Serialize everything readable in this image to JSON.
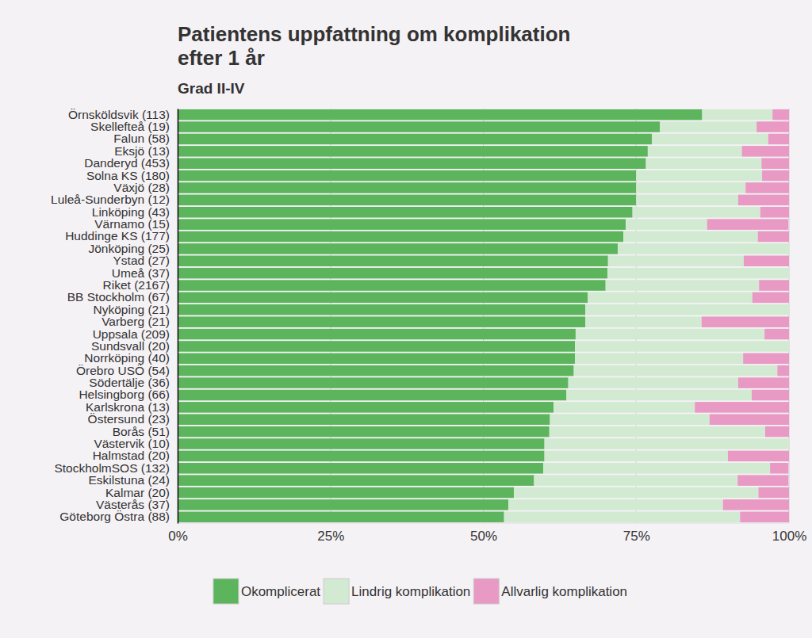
{
  "chart_data": {
    "type": "bar",
    "orientation": "horizontal",
    "stacked": true,
    "grid": true,
    "legend": "bottom",
    "title": "Patientens uppfattning om komplikation\nefter 1 år",
    "subtitle": "Grad II-IV",
    "categories": [
      "Örnsköldsvik (113)",
      "Skellefteå (19)",
      "Falun (58)",
      "Eksjö (13)",
      "Danderyd (453)",
      "Solna KS (180)",
      "Växjö (28)",
      "Luleå-Sunderbyn (12)",
      "Linköping (43)",
      "Värnamo (15)",
      "Huddinge KS (177)",
      "Jönköping (25)",
      "Ystad (27)",
      "Umeå (37)",
      "Riket (2167)",
      "BB Stockholm (67)",
      "Nyköping (21)",
      "Varberg (21)",
      "Uppsala (209)",
      "Sundsvall (20)",
      "Norrköping (40)",
      "Örebro USÖ (54)",
      "Södertälje (36)",
      "Helsingborg (66)",
      "Karlskrona (13)",
      "Östersund (23)",
      "Borås (51)",
      "Västervik (10)",
      "Halmstad (20)",
      "StockholmSOS (132)",
      "Eskilstuna (24)",
      "Kalmar (20)",
      "Västerås (37)",
      "Göteborg Östra (88)"
    ],
    "series": [
      {
        "name": "Okomplicerat",
        "color": "#5cb55c",
        "values": [
          85.8,
          78.9,
          77.6,
          76.9,
          76.6,
          75.0,
          75.0,
          75.0,
          74.4,
          73.3,
          72.9,
          72.0,
          70.4,
          70.3,
          70.0,
          67.1,
          66.7,
          66.7,
          65.1,
          65.0,
          65.0,
          64.8,
          63.9,
          63.6,
          61.5,
          60.9,
          60.8,
          60.0,
          60.0,
          59.8,
          58.3,
          55.0,
          54.1,
          53.4
        ]
      },
      {
        "name": "Lindrig komplikation",
        "color": "#d2ead2",
        "values": [
          11.5,
          15.8,
          19.0,
          15.4,
          18.9,
          20.6,
          17.9,
          16.7,
          20.9,
          13.3,
          22.0,
          28.0,
          22.2,
          29.7,
          25.1,
          26.9,
          33.3,
          19.0,
          30.9,
          35.0,
          27.5,
          33.3,
          27.8,
          30.3,
          23.1,
          26.1,
          35.3,
          40.0,
          30.0,
          37.1,
          33.3,
          40.0,
          35.1,
          38.6
        ]
      },
      {
        "name": "Allvarlig komplikation",
        "color": "#e899c4",
        "values": [
          2.7,
          5.3,
          3.4,
          7.7,
          4.5,
          4.4,
          7.1,
          8.3,
          4.7,
          13.3,
          5.1,
          0,
          7.4,
          0,
          4.9,
          6.0,
          0,
          14.3,
          4.0,
          0,
          7.5,
          1.9,
          8.3,
          6.1,
          15.4,
          13.0,
          3.9,
          0,
          10.0,
          3.0,
          8.3,
          5.0,
          10.8,
          8.0
        ]
      }
    ],
    "xlim": [
      0,
      100
    ],
    "xticks": [
      {
        "value": 0,
        "label": "0%"
      },
      {
        "value": 25,
        "label": "25%"
      },
      {
        "value": 50,
        "label": "50%"
      },
      {
        "value": 75,
        "label": "75%"
      },
      {
        "value": 100,
        "label": "100%"
      }
    ]
  }
}
